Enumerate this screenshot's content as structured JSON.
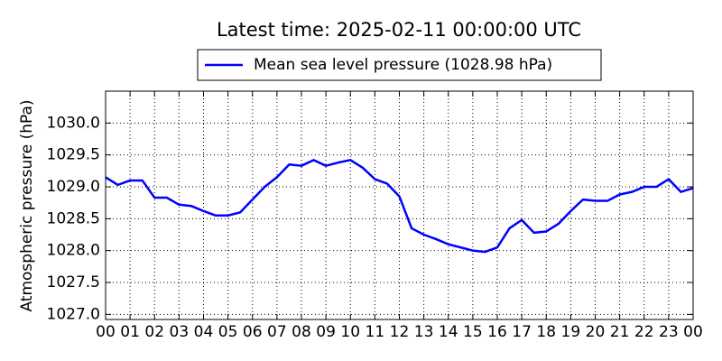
{
  "chart_data": {
    "type": "line",
    "title": "Latest time: 2025-02-11 00:00:00 UTC",
    "y_label": "Atmospheric pressure (hPa)",
    "x": [
      0,
      0.5,
      1,
      1.5,
      2,
      2.5,
      3,
      3.5,
      4,
      4.5,
      5,
      5.5,
      6,
      6.5,
      7,
      7.5,
      8,
      8.5,
      9,
      9.5,
      10,
      10.5,
      11,
      11.5,
      12,
      12.5,
      13,
      13.5,
      14,
      14.5,
      15,
      15.5,
      16,
      16.5,
      17,
      17.5,
      18,
      18.5,
      19,
      19.5,
      20,
      20.5,
      21,
      21.5,
      22,
      22.5,
      23,
      23.5,
      24
    ],
    "series": [
      {
        "name": "Mean sea level pressure (1028.98 hPa)",
        "color": "#0000ff",
        "values": [
          1029.15,
          1029.03,
          1029.1,
          1029.1,
          1028.83,
          1028.83,
          1028.72,
          1028.7,
          1028.62,
          1028.55,
          1028.55,
          1028.6,
          1028.8,
          1029.0,
          1029.15,
          1029.35,
          1029.33,
          1029.42,
          1029.33,
          1029.38,
          1029.42,
          1029.3,
          1029.12,
          1029.05,
          1028.85,
          1028.35,
          1028.25,
          1028.18,
          1028.1,
          1028.05,
          1028.0,
          1027.98,
          1028.05,
          1028.35,
          1028.48,
          1028.28,
          1028.3,
          1028.42,
          1028.62,
          1028.8,
          1028.78,
          1028.78,
          1028.88,
          1028.92,
          1029.0,
          1029.0,
          1029.12,
          1028.92,
          1028.98
        ]
      }
    ],
    "xlim": [
      0,
      24
    ],
    "xticks": [
      {
        "value": 0,
        "label": "00"
      },
      {
        "value": 1,
        "label": "01"
      },
      {
        "value": 2,
        "label": "02"
      },
      {
        "value": 3,
        "label": "03"
      },
      {
        "value": 4,
        "label": "04"
      },
      {
        "value": 5,
        "label": "05"
      },
      {
        "value": 6,
        "label": "06"
      },
      {
        "value": 7,
        "label": "07"
      },
      {
        "value": 8,
        "label": "08"
      },
      {
        "value": 9,
        "label": "09"
      },
      {
        "value": 10,
        "label": "10"
      },
      {
        "value": 11,
        "label": "11"
      },
      {
        "value": 12,
        "label": "12"
      },
      {
        "value": 13,
        "label": "13"
      },
      {
        "value": 14,
        "label": "14"
      },
      {
        "value": 15,
        "label": "15"
      },
      {
        "value": 16,
        "label": "16"
      },
      {
        "value": 17,
        "label": "17"
      },
      {
        "value": 18,
        "label": "18"
      },
      {
        "value": 19,
        "label": "19"
      },
      {
        "value": 20,
        "label": "20"
      },
      {
        "value": 21,
        "label": "21"
      },
      {
        "value": 22,
        "label": "22"
      },
      {
        "value": 23,
        "label": "23"
      },
      {
        "value": 24,
        "label": "00"
      }
    ],
    "ylim": [
      1026.92,
      1030.5
    ],
    "yticks": [
      {
        "value": 1027.0,
        "label": "1027.0"
      },
      {
        "value": 1027.5,
        "label": "1027.5"
      },
      {
        "value": 1028.0,
        "label": "1028.0"
      },
      {
        "value": 1028.5,
        "label": "1028.5"
      },
      {
        "value": 1029.0,
        "label": "1029.0"
      },
      {
        "value": 1029.5,
        "label": "1029.5"
      },
      {
        "value": 1030.0,
        "label": "1030.0"
      }
    ],
    "grid": true,
    "legend": "top"
  }
}
